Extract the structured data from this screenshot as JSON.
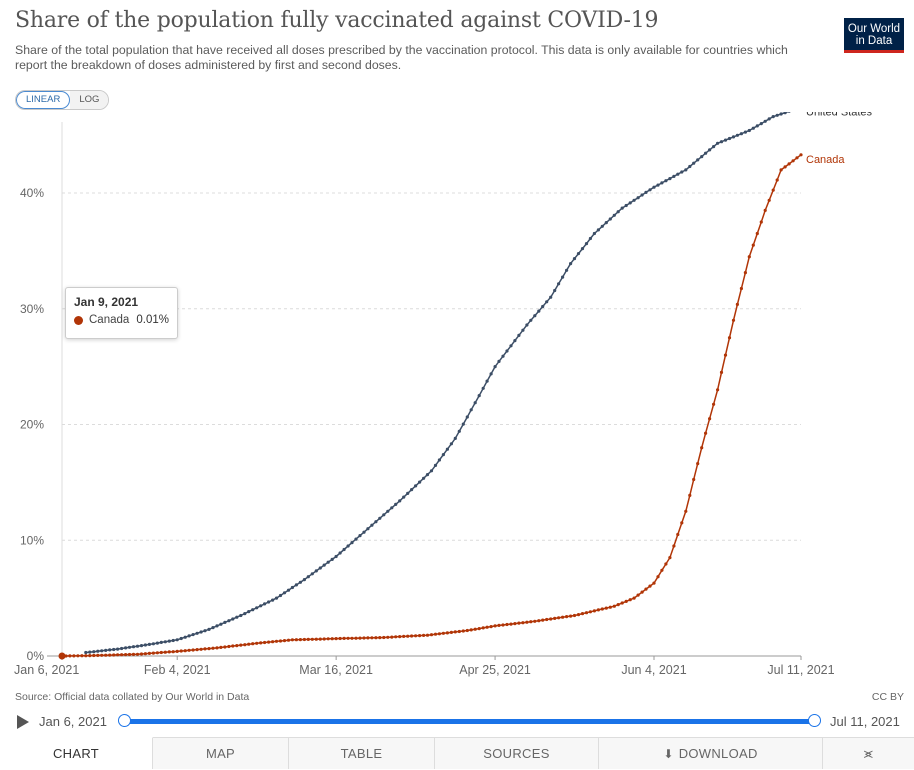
{
  "header": {
    "title": "Share of the population fully vaccinated against COVID-19",
    "subtitle": "Share of the total population that have received all doses prescribed by the vaccination protocol. This data is only available for countries which report the breakdown of doses administered by first and second doses.",
    "logo_line1": "Our World",
    "logo_line2": "in Data"
  },
  "scale_toggle": {
    "linear_label": "LINEAR",
    "log_label": "LOG",
    "selected": "LINEAR"
  },
  "tooltip": {
    "date": "Jan 9, 2021",
    "series": "Canada",
    "value": "0.01%"
  },
  "footer": {
    "source": "Source: Official data collated by Our World in Data",
    "license": "CC BY"
  },
  "timeline": {
    "start_label": "Jan 6, 2021",
    "end_label": "Jul 11, 2021",
    "start_fraction": 0,
    "end_fraction": 1
  },
  "tabs": {
    "chart": "CHART",
    "map": "MAP",
    "table": "TABLE",
    "sources": "SOURCES",
    "download": "DOWNLOAD",
    "active": "chart"
  },
  "icons": [
    "play-icon",
    "download-icon",
    "share-icon"
  ],
  "colors": {
    "us": "#3c4e66",
    "canada": "#b13507",
    "accent": "#1a73e8"
  },
  "chart_data": {
    "type": "line",
    "title": "Share of the population fully vaccinated against COVID-19",
    "xlabel": "",
    "ylabel": "",
    "y_unit": "%",
    "ylim": [
      0,
      47
    ],
    "yticks": [
      0,
      10,
      20,
      30,
      40
    ],
    "ytick_labels": [
      "0%",
      "10%",
      "20%",
      "30%",
      "40%"
    ],
    "xlim": [
      "2021-01-06",
      "2021-07-11"
    ],
    "xticks": [
      "2021-01-06",
      "2021-02-04",
      "2021-03-16",
      "2021-04-25",
      "2021-06-04",
      "2021-07-11"
    ],
    "xtick_labels": [
      "Jan 6, 2021",
      "Feb 4, 2021",
      "Mar 16, 2021",
      "Apr 25, 2021",
      "Jun 4, 2021",
      "Jul 11, 2021"
    ],
    "grid": "horizontal dashed",
    "legend": "line-end labels",
    "series": [
      {
        "name": "United States",
        "color": "#3c4e66",
        "points": [
          [
            "2021-01-12",
            0.3
          ],
          [
            "2021-01-20",
            0.6
          ],
          [
            "2021-01-28",
            1.0
          ],
          [
            "2021-02-04",
            1.4
          ],
          [
            "2021-02-12",
            2.3
          ],
          [
            "2021-02-20",
            3.5
          ],
          [
            "2021-03-01",
            5.0
          ],
          [
            "2021-03-08",
            6.6
          ],
          [
            "2021-03-16",
            8.6
          ],
          [
            "2021-03-24",
            11.0
          ],
          [
            "2021-04-01",
            13.4
          ],
          [
            "2021-04-09",
            16.0
          ],
          [
            "2021-04-15",
            18.8
          ],
          [
            "2021-04-21",
            22.5
          ],
          [
            "2021-04-25",
            25.0
          ],
          [
            "2021-05-03",
            28.6
          ],
          [
            "2021-05-09",
            31.0
          ],
          [
            "2021-05-14",
            33.9
          ],
          [
            "2021-05-20",
            36.5
          ],
          [
            "2021-05-27",
            38.7
          ],
          [
            "2021-06-04",
            40.5
          ],
          [
            "2021-06-12",
            42.0
          ],
          [
            "2021-06-20",
            44.3
          ],
          [
            "2021-06-28",
            45.4
          ],
          [
            "2021-07-04",
            46.6
          ],
          [
            "2021-07-11",
            47.4
          ]
        ]
      },
      {
        "name": "Canada",
        "color": "#b13507",
        "points": [
          [
            "2021-01-06",
            0.0
          ],
          [
            "2021-01-09",
            0.01
          ],
          [
            "2021-01-15",
            0.05
          ],
          [
            "2021-01-25",
            0.15
          ],
          [
            "2021-02-04",
            0.4
          ],
          [
            "2021-02-14",
            0.7
          ],
          [
            "2021-02-24",
            1.1
          ],
          [
            "2021-03-05",
            1.4
          ],
          [
            "2021-03-16",
            1.5
          ],
          [
            "2021-03-28",
            1.6
          ],
          [
            "2021-04-08",
            1.8
          ],
          [
            "2021-04-18",
            2.2
          ],
          [
            "2021-04-25",
            2.6
          ],
          [
            "2021-05-05",
            3.0
          ],
          [
            "2021-05-15",
            3.5
          ],
          [
            "2021-05-25",
            4.3
          ],
          [
            "2021-05-30",
            5.0
          ],
          [
            "2021-06-04",
            6.3
          ],
          [
            "2021-06-08",
            8.5
          ],
          [
            "2021-06-12",
            12.5
          ],
          [
            "2021-06-16",
            18.0
          ],
          [
            "2021-06-20",
            23.0
          ],
          [
            "2021-06-24",
            29.0
          ],
          [
            "2021-06-28",
            34.5
          ],
          [
            "2021-07-02",
            38.5
          ],
          [
            "2021-07-06",
            42.0
          ],
          [
            "2021-07-11",
            43.3
          ]
        ]
      }
    ]
  }
}
